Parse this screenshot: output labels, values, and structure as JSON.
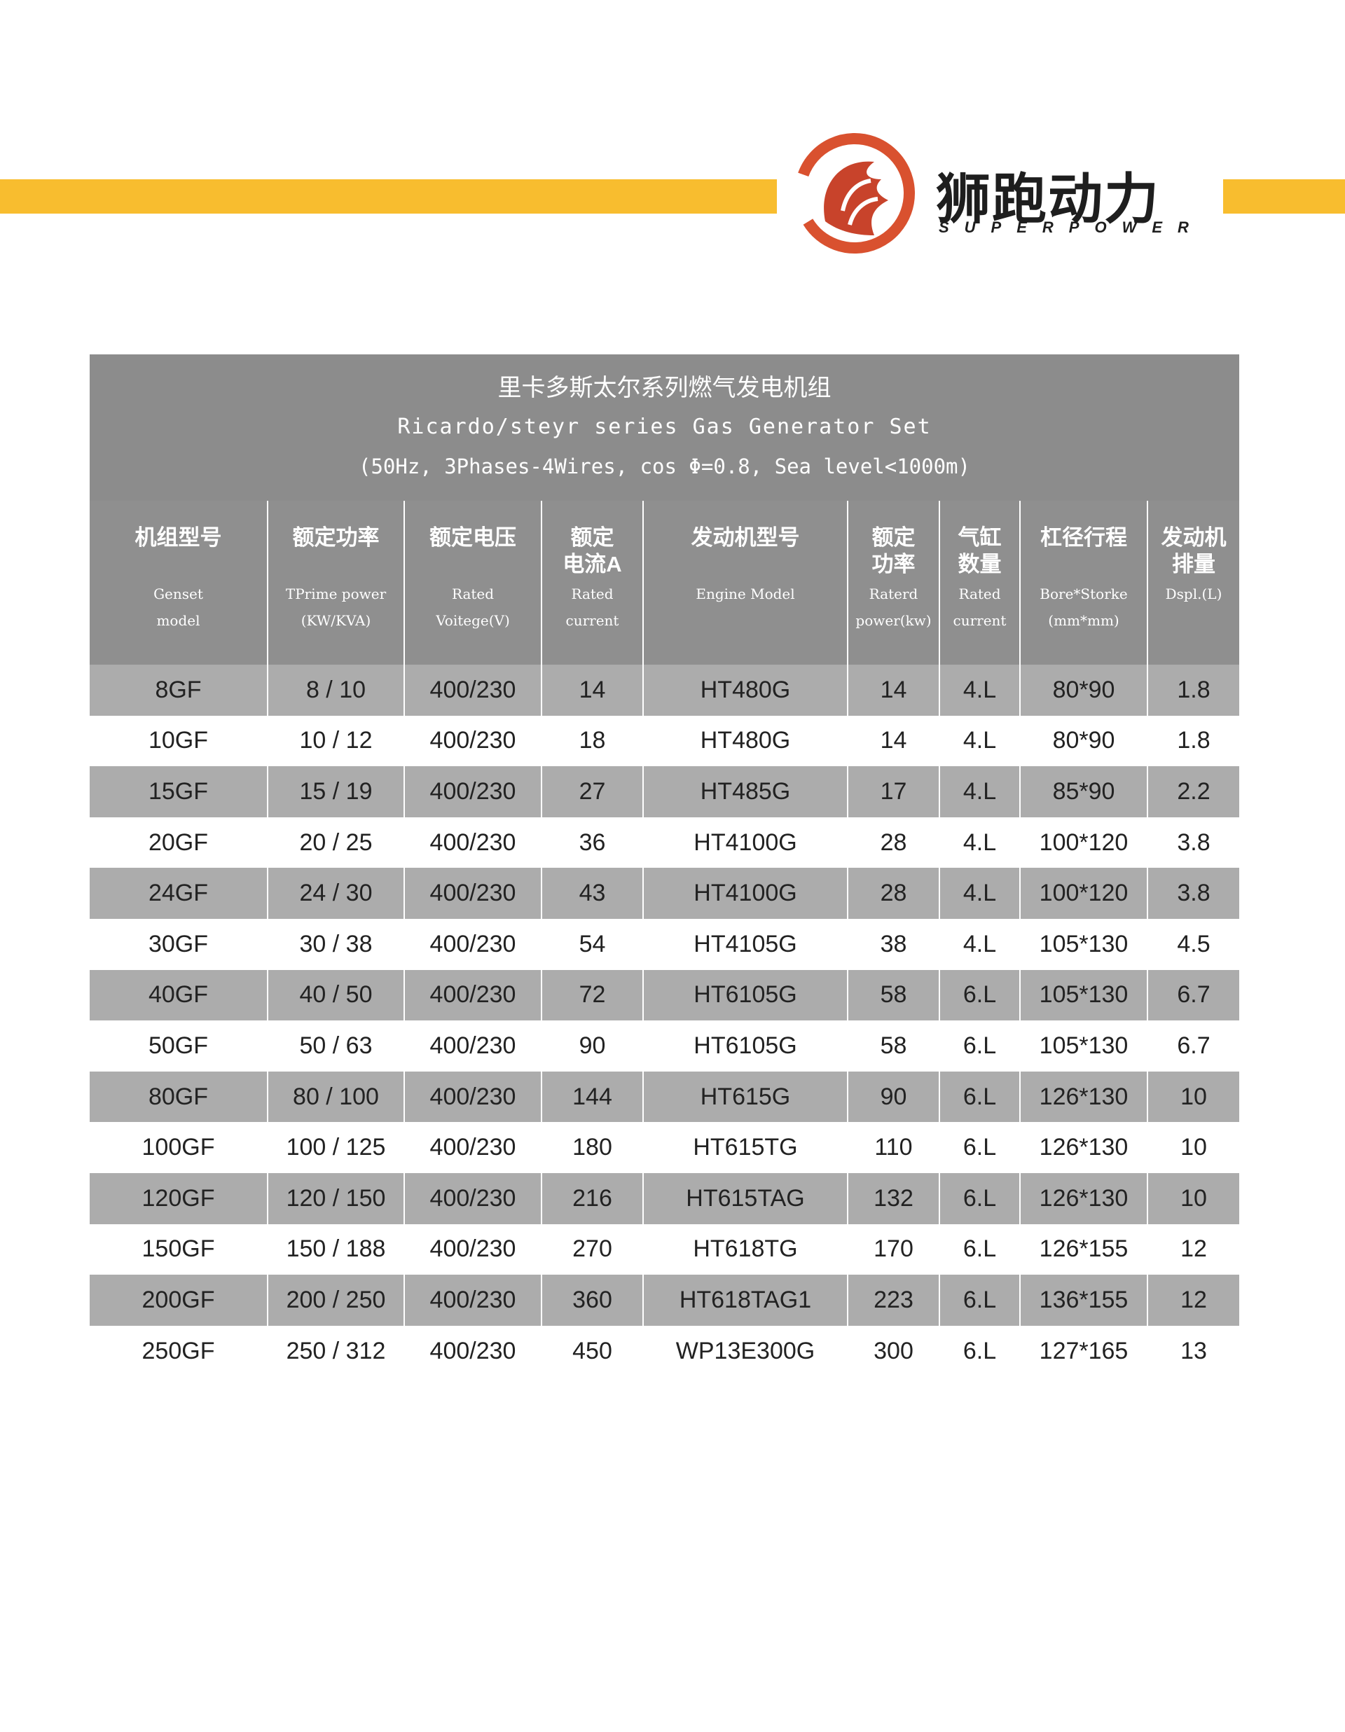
{
  "brand": {
    "name_zh": "狮跑动力",
    "name_en": "SUPERPOWER"
  },
  "table": {
    "title_zh": "里卡多斯太尔系列燃气发电机组",
    "title_en": "Ricardo/steyr series Gas Generator Set",
    "note": "(50Hz, 3Phases-4Wires, cos Φ=0.8, Sea level<1000m)",
    "headers": [
      {
        "zh": [
          "机组型号"
        ],
        "en": [
          "Genset",
          "model"
        ]
      },
      {
        "zh": [
          "额定功率"
        ],
        "en": [
          "TPrime power",
          "(KW/KVA)"
        ]
      },
      {
        "zh": [
          "额定电压"
        ],
        "en": [
          "Rated",
          "Voitege(V)"
        ]
      },
      {
        "zh": [
          "额定",
          "电流A"
        ],
        "en": [
          "Rated",
          "current"
        ]
      },
      {
        "zh": [
          "发动机型号"
        ],
        "en": [
          "Engine Model"
        ]
      },
      {
        "zh": [
          "额定",
          "功率"
        ],
        "en": [
          "Raterd",
          "power(kw)"
        ]
      },
      {
        "zh": [
          "气缸",
          "数量"
        ],
        "en": [
          "Rated",
          "current"
        ]
      },
      {
        "zh": [
          "杠径行程"
        ],
        "en": [
          "Bore*Storke",
          "(mm*mm)"
        ]
      },
      {
        "zh": [
          "发动机",
          "排量"
        ],
        "en": [
          "Dspl.(L)"
        ]
      }
    ],
    "rows": [
      [
        "8GF",
        "8 / 10",
        "400/230",
        "14",
        "HT480G",
        "14",
        "4.L",
        "80*90",
        "1.8"
      ],
      [
        "10GF",
        "10 / 12",
        "400/230",
        "18",
        "HT480G",
        "14",
        "4.L",
        "80*90",
        "1.8"
      ],
      [
        "15GF",
        "15 / 19",
        "400/230",
        "27",
        "HT485G",
        "17",
        "4.L",
        "85*90",
        "2.2"
      ],
      [
        "20GF",
        "20 / 25",
        "400/230",
        "36",
        "HT4100G",
        "28",
        "4.L",
        "100*120",
        "3.8"
      ],
      [
        "24GF",
        "24 / 30",
        "400/230",
        "43",
        "HT4100G",
        "28",
        "4.L",
        "100*120",
        "3.8"
      ],
      [
        "30GF",
        "30 / 38",
        "400/230",
        "54",
        "HT4105G",
        "38",
        "4.L",
        "105*130",
        "4.5"
      ],
      [
        "40GF",
        "40 / 50",
        "400/230",
        "72",
        "HT6105G",
        "58",
        "6.L",
        "105*130",
        "6.7"
      ],
      [
        "50GF",
        "50 / 63",
        "400/230",
        "90",
        "HT6105G",
        "58",
        "6.L",
        "105*130",
        "6.7"
      ],
      [
        "80GF",
        "80 / 100",
        "400/230",
        "144",
        "HT615G",
        "90",
        "6.L",
        "126*130",
        "10"
      ],
      [
        "100GF",
        "100 / 125",
        "400/230",
        "180",
        "HT615TG",
        "110",
        "6.L",
        "126*130",
        "10"
      ],
      [
        "120GF",
        "120 / 150",
        "400/230",
        "216",
        "HT615TAG",
        "132",
        "6.L",
        "126*130",
        "10"
      ],
      [
        "150GF",
        "150 / 188",
        "400/230",
        "270",
        "HT618TG",
        "170",
        "6.L",
        "126*155",
        "12"
      ],
      [
        "200GF",
        "200 / 250",
        "400/230",
        "360",
        "HT618TAG1",
        "223",
        "6.L",
        "136*155",
        "12"
      ],
      [
        "250GF",
        "250 / 312",
        "400/230",
        "450",
        "WP13E300G",
        "300",
        "6.L",
        "127*165",
        "13"
      ]
    ]
  }
}
